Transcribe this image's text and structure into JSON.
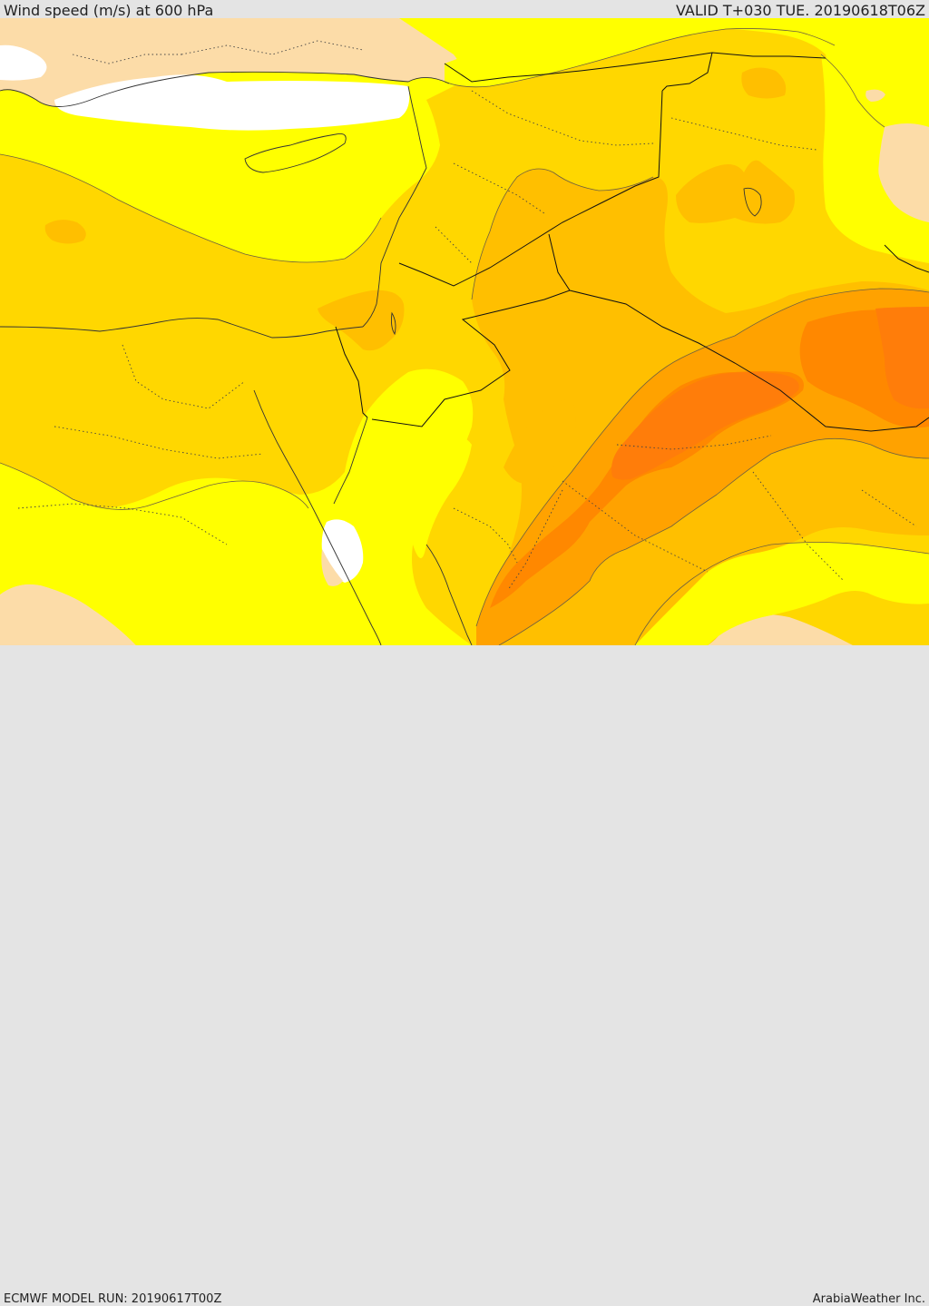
{
  "header": {
    "title": "Wind speed (m/s) at 600 hPa",
    "valid": "VALID T+030 TUE. 20190618T06Z"
  },
  "footer": {
    "model_run": "ECMWF MODEL RUN: 20190617T00Z",
    "credit": "ArabiaWeather Inc."
  },
  "colors": {
    "land_low": "#fcdca8",
    "sea_low": "#ffffff",
    "band_1": "#ffff00",
    "band_2": "#ffd700",
    "band_3": "#ffbf00",
    "band_4": "#ffa200",
    "band_5": "#ff8800",
    "band_6": "#ff7d0a"
  }
}
